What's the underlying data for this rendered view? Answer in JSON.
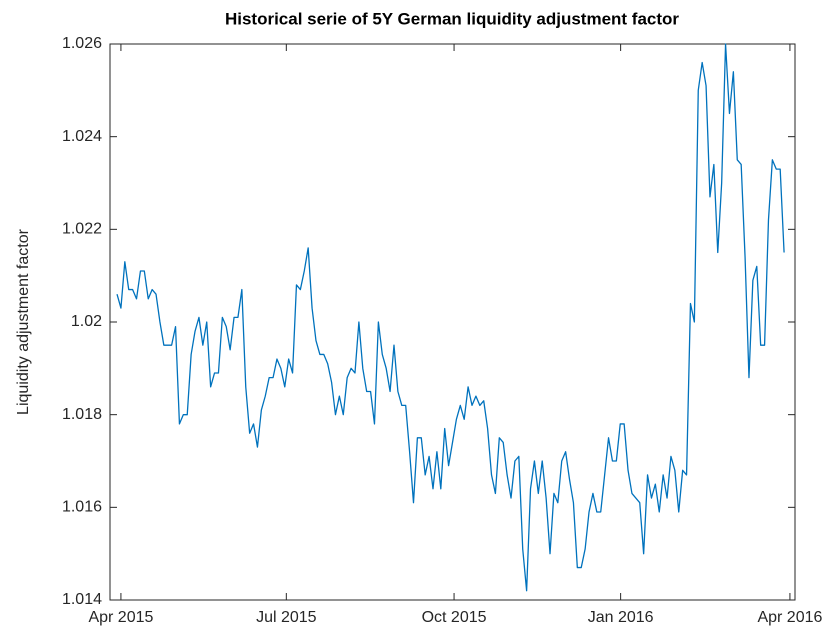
{
  "chart_data": {
    "type": "line",
    "title": "Historical serie of 5Y German liquidity adjustment factor",
    "ylabel": "Liquidity adjustment factor",
    "xlim": [
      -1.8,
      173.8
    ],
    "xticks": [
      {
        "value": 1.0,
        "label": "Apr 2015"
      },
      {
        "value": 43.4,
        "label": "Jul 2015"
      },
      {
        "value": 86.4,
        "label": "Oct 2015"
      },
      {
        "value": 129.1,
        "label": "Jan 2016"
      },
      {
        "value": 172.5,
        "label": "Apr 2016"
      }
    ],
    "ylim": [
      1.014,
      1.026
    ],
    "yticks": [
      1.014,
      1.016,
      1.018,
      1.02,
      1.022,
      1.024,
      1.026
    ],
    "grid": false,
    "series": [
      {
        "color": "#0072bd",
        "values": [
          1.0206,
          1.0203,
          1.0213,
          1.0207,
          1.0207,
          1.0205,
          1.0211,
          1.0211,
          1.0205,
          1.0207,
          1.0206,
          1.02,
          1.0195,
          1.0195,
          1.0195,
          1.0199,
          1.0178,
          1.018,
          1.018,
          1.0193,
          1.0198,
          1.0201,
          1.0195,
          1.02,
          1.0186,
          1.0189,
          1.0189,
          1.0201,
          1.0199,
          1.0194,
          1.0201,
          1.0201,
          1.0207,
          1.0186,
          1.0176,
          1.0178,
          1.0173,
          1.0181,
          1.0184,
          1.0188,
          1.0188,
          1.0192,
          1.019,
          1.0186,
          1.0192,
          1.0189,
          1.0208,
          1.0207,
          1.0211,
          1.0216,
          1.0203,
          1.0196,
          1.0193,
          1.0193,
          1.0191,
          1.0187,
          1.018,
          1.0184,
          1.018,
          1.0188,
          1.019,
          1.0189,
          1.02,
          1.019,
          1.0185,
          1.0185,
          1.0178,
          1.02,
          1.0193,
          1.019,
          1.0185,
          1.0195,
          1.0185,
          1.0182,
          1.0182,
          1.0172,
          1.0161,
          1.0175,
          1.0175,
          1.0167,
          1.0171,
          1.0164,
          1.0172,
          1.0164,
          1.0177,
          1.0169,
          1.0174,
          1.0179,
          1.0182,
          1.0179,
          1.0186,
          1.0182,
          1.0184,
          1.0182,
          1.0183,
          1.0177,
          1.0167,
          1.0163,
          1.0175,
          1.0174,
          1.0167,
          1.0162,
          1.017,
          1.0171,
          1.0151,
          1.0142,
          1.0164,
          1.017,
          1.0163,
          1.017,
          1.0162,
          1.015,
          1.0163,
          1.0161,
          1.017,
          1.0172,
          1.0166,
          1.0161,
          1.0147,
          1.0147,
          1.0151,
          1.0159,
          1.0163,
          1.0159,
          1.0159,
          1.0167,
          1.0175,
          1.017,
          1.017,
          1.0178,
          1.0178,
          1.0168,
          1.0163,
          1.0162,
          1.0161,
          1.015,
          1.0167,
          1.0162,
          1.0165,
          1.0159,
          1.0167,
          1.0162,
          1.0171,
          1.0168,
          1.0159,
          1.0168,
          1.0167,
          1.0204,
          1.02,
          1.025,
          1.0256,
          1.0251,
          1.0227,
          1.0234,
          1.0215,
          1.023,
          1.026,
          1.0245,
          1.0254,
          1.0235,
          1.0234,
          1.0214,
          1.0188,
          1.0209,
          1.0212,
          1.0195,
          1.0195,
          1.0222,
          1.0235,
          1.0233,
          1.0233,
          1.0215
        ]
      }
    ]
  }
}
